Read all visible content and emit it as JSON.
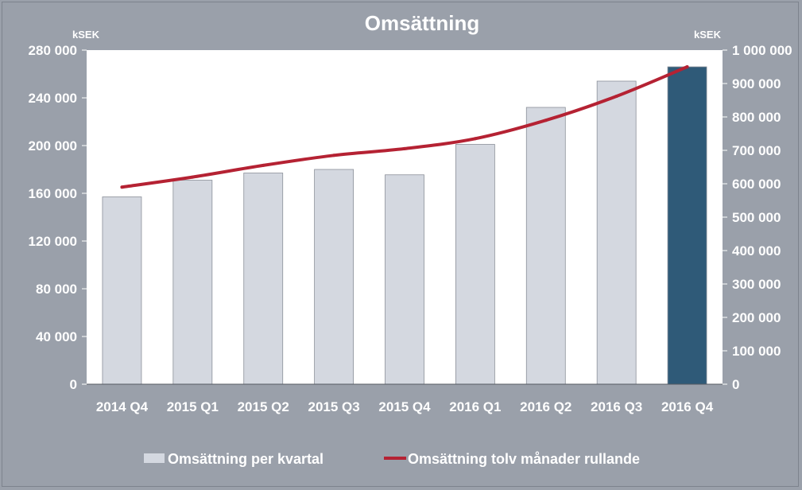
{
  "chart_data": {
    "type": "bar",
    "title": "Omsättning",
    "categories": [
      "2014 Q4",
      "2015 Q1",
      "2015 Q2",
      "2015 Q3",
      "2015 Q4",
      "2016 Q1",
      "2016 Q2",
      "2016 Q3",
      "2016 Q4"
    ],
    "y_left_unit": "kSEK",
    "y_right_unit": "kSEK",
    "y_left_ticks": [
      "0",
      "40 000",
      "80 000",
      "120 000",
      "160 000",
      "200 000",
      "240 000",
      "280 000"
    ],
    "y_right_ticks": [
      "0",
      "100 000",
      "200 000",
      "300 000",
      "400 000",
      "500 000",
      "600 000",
      "700 000",
      "800 000",
      "900 000",
      "1 000 000"
    ],
    "ylim_left": [
      0,
      280000
    ],
    "ylim_right": [
      0,
      1000000
    ],
    "grid": false,
    "legend_position": "bottom",
    "series": [
      {
        "name": "Omsättning per kvartal",
        "type": "bar",
        "axis": "left",
        "values": [
          157000,
          171000,
          177000,
          180000,
          175500,
          201000,
          232000,
          254000,
          266000
        ],
        "color": "#d4d8e0",
        "highlight_index": 8,
        "highlight_color": "#2f5a78"
      },
      {
        "name": "Omsättning tolv månader rullande",
        "type": "line",
        "axis": "right",
        "values": [
          590000,
          620000,
          655000,
          685000,
          705000,
          735000,
          790000,
          862000,
          950000
        ],
        "color": "#b52233"
      }
    ]
  }
}
